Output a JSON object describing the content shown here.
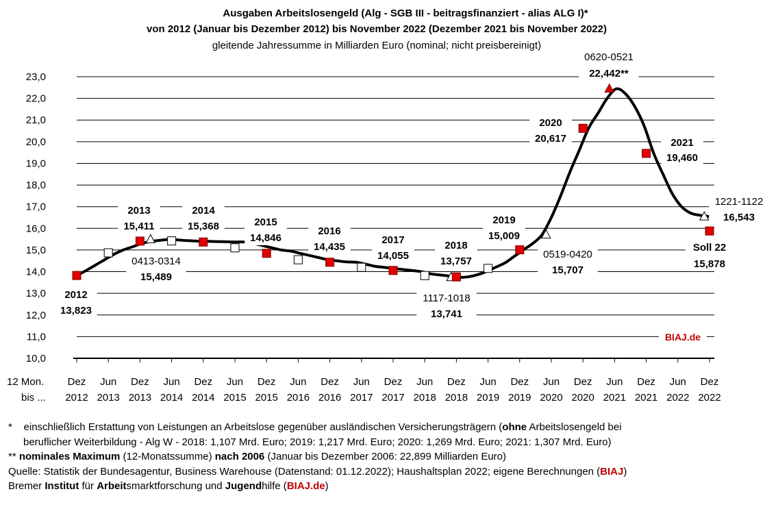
{
  "chart_data": {
    "type": "line",
    "title_lines": [
      "Ausgaben Arbeitslosengeld (Alg - SGB III - beitragsfinanziert - alias ALG I)*",
      "von 2012 (Januar bis Dezember 2012) bis November 2022 (Dezember 2021 bis November 2022)"
    ],
    "subtitle": "gleitende  Jahressumme in Milliarden Euro (nominal; nicht preisbereinigt)",
    "x_axis_header": [
      "12 Mon.",
      "bis ..."
    ],
    "x_ticks": [
      {
        "month": "Dez",
        "year": "2012"
      },
      {
        "month": "Jun",
        "year": "2013"
      },
      {
        "month": "Dez",
        "year": "2013"
      },
      {
        "month": "Jun",
        "year": "2014"
      },
      {
        "month": "Dez",
        "year": "2014"
      },
      {
        "month": "Jun",
        "year": "2015"
      },
      {
        "month": "Dez",
        "year": "2015"
      },
      {
        "month": "Jun",
        "year": "2016"
      },
      {
        "month": "Dez",
        "year": "2016"
      },
      {
        "month": "Jun",
        "year": "2017"
      },
      {
        "month": "Dez",
        "year": "2017"
      },
      {
        "month": "Jun",
        "year": "2018"
      },
      {
        "month": "Dez",
        "year": "2018"
      },
      {
        "month": "Jun",
        "year": "2019"
      },
      {
        "month": "Dez",
        "year": "2019"
      },
      {
        "month": "Jun",
        "year": "2020"
      },
      {
        "month": "Dez",
        "year": "2020"
      },
      {
        "month": "Jun",
        "year": "2021"
      },
      {
        "month": "Dez",
        "year": "2021"
      },
      {
        "month": "Jun",
        "year": "2022"
      },
      {
        "month": "Dez",
        "year": "2022"
      }
    ],
    "y_ticks": [
      "10,0",
      "11,0",
      "12,0",
      "13,0",
      "14,0",
      "15,0",
      "16,0",
      "17,0",
      "18,0",
      "19,0",
      "20,0",
      "21,0",
      "22,0",
      "23,0"
    ],
    "ylim": [
      10,
      23
    ],
    "grid": true,
    "series_line": [
      13.823,
      14.05,
      14.3,
      14.55,
      14.8,
      15.0,
      15.15,
      15.3,
      15.4,
      15.45,
      15.489,
      15.46,
      15.43,
      15.41,
      15.4,
      15.39,
      15.38,
      15.37,
      15.368,
      15.3,
      15.2,
      15.1,
      15.0,
      14.95,
      14.846,
      14.75,
      14.65,
      14.55,
      14.5,
      14.45,
      14.435,
      14.35,
      14.25,
      14.2,
      14.15,
      14.1,
      14.055,
      14.0,
      13.9,
      13.85,
      13.8,
      13.741,
      13.757,
      13.85,
      14.0,
      14.2,
      14.4,
      14.7,
      15.009,
      15.3,
      15.707,
      16.5,
      17.5,
      18.6,
      19.6,
      20.617,
      21.3,
      22.0,
      22.442,
      22.2,
      21.6,
      20.7,
      19.46,
      18.5,
      17.6,
      17.0,
      16.7,
      16.6,
      16.543
    ],
    "markers": [
      {
        "kind": "red_square",
        "i": 0,
        "value": 13.823
      },
      {
        "kind": "white_square",
        "i": 6,
        "value": 14.87
      },
      {
        "kind": "red_square",
        "i": 12,
        "value": 15.411
      },
      {
        "kind": "white_triangle",
        "i": 14,
        "value": 15.489
      },
      {
        "kind": "white_square",
        "i": 18,
        "value": 15.42
      },
      {
        "kind": "red_square",
        "i": 24,
        "value": 15.368
      },
      {
        "kind": "white_square",
        "i": 30,
        "value": 15.1
      },
      {
        "kind": "red_square",
        "i": 36,
        "value": 14.846
      },
      {
        "kind": "white_square",
        "i": 42,
        "value": 14.55
      },
      {
        "kind": "red_square",
        "i": 48,
        "value": 14.435
      },
      {
        "kind": "white_square",
        "i": 54,
        "value": 14.2
      },
      {
        "kind": "red_square",
        "i": 60,
        "value": 14.055
      },
      {
        "kind": "white_square",
        "i": 66,
        "value": 13.82
      },
      {
        "kind": "white_triangle",
        "i": 71,
        "value": 13.741
      },
      {
        "kind": "red_square",
        "i": 72,
        "value": 13.757
      },
      {
        "kind": "white_square",
        "i": 78,
        "value": 14.15
      },
      {
        "kind": "red_square",
        "i": 84,
        "value": 15.009
      },
      {
        "kind": "white_triangle",
        "i": 89,
        "value": 15.707
      },
      {
        "kind": "red_square",
        "i": 96,
        "value": 20.617
      },
      {
        "kind": "red_triangle",
        "i": 101,
        "value": 22.442
      },
      {
        "kind": "red_square",
        "i": 108,
        "value": 19.46
      },
      {
        "kind": "white_triangle",
        "i": 119,
        "value": 16.543
      },
      {
        "kind": "red_square",
        "i": 120,
        "value": 15.878
      }
    ],
    "annotations": [
      {
        "line1": "2012",
        "line2": "13,823",
        "style": "bold"
      },
      {
        "line1": "2013",
        "line2": "15,411",
        "style": "bold"
      },
      {
        "line1": "0413-0314",
        "line2": "15,489",
        "style": "range"
      },
      {
        "line1": "2014",
        "line2": "15,368",
        "style": "bold"
      },
      {
        "line1": "2015",
        "line2": "14,846",
        "style": "bold"
      },
      {
        "line1": "2016",
        "line2": "14,435",
        "style": "bold"
      },
      {
        "line1": "2017",
        "line2": "14,055",
        "style": "bold"
      },
      {
        "line1": "2018",
        "line2": "13,757",
        "style": "bold"
      },
      {
        "line1": "1117-1018",
        "line2": "13,741",
        "style": "range"
      },
      {
        "line1": "2019",
        "line2": "15,009",
        "style": "bold"
      },
      {
        "line1": "0519-0420",
        "line2": "15,707",
        "style": "range"
      },
      {
        "line1": "2020",
        "line2": "20,617",
        "style": "bold"
      },
      {
        "line1": "0620-0521",
        "line2": "22,442**",
        "style": "range"
      },
      {
        "line1": "2021",
        "line2": "19,460",
        "style": "bold"
      },
      {
        "line1": "1221-1122",
        "line2": "16,543",
        "style": "range"
      },
      {
        "line1": "Soll 22",
        "line2": "15,878",
        "style": "bold"
      }
    ],
    "watermark": "BIAJ.de",
    "colors": {
      "line": "#000000",
      "red_marker": "#e00000",
      "brand": "#c00000",
      "grid": "#000000"
    }
  },
  "footnotes": {
    "f1_star": "*",
    "f1_a": "einschließlich Erstattung von Leistungen an Arbeitslose gegenüber ausländischen Versicherungsträgern (",
    "f1_b": "ohne",
    "f1_c": " Arbeitslosengeld bei",
    "f1_line2": "beruflicher Weiterbildung  - Alg W - 2018: 1,107 Mrd. Euro; 2019: 1,217 Mrd. Euro; 2020: 1,269 Mrd. Euro; 2021: 1,307 Mrd. Euro)",
    "f2_a": "** ",
    "f2_b": "nominales Maximum",
    "f2_c": " (12-Monatssumme) ",
    "f2_d": "nach 2006",
    "f2_e": " (Januar bis Dezember 2006: 22,899 Milliarden Euro)",
    "f3_a": "Quelle: Statistik der Bundesagentur, Business Warehouse (Datenstand: 01.12.2022); Haushaltsplan 2022; eigene Berechnungen (",
    "f3_b": "BIAJ",
    "f3_c": ")",
    "f4_a": "Bremer ",
    "f4_b": "Institut",
    "f4_c": " für ",
    "f4_d": "Arbeit",
    "f4_e": "smarktforschung und ",
    "f4_f": "Jugend",
    "f4_g": "hilfe (",
    "f4_h": "BIAJ.de",
    "f4_i": ")"
  }
}
